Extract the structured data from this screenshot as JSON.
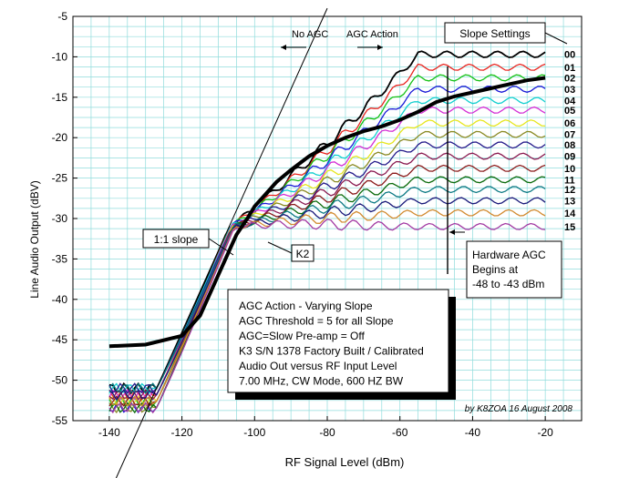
{
  "chart_data": {
    "type": "line",
    "xlabel": "RF Signal Level (dBm)",
    "ylabel": "Line Audio Output (dBV)",
    "xlim": [
      -150,
      -10
    ],
    "ylim": [
      -55,
      -5
    ],
    "x_ticks": [
      -140,
      -120,
      -100,
      -80,
      -60,
      -40,
      -20
    ],
    "x_tick_labels": [
      "-140",
      "-120",
      "-100",
      "-80",
      "-60",
      "-40",
      "-20"
    ],
    "y_ticks": [
      -5,
      -10,
      -15,
      -20,
      -25,
      -30,
      -35,
      -40,
      -45,
      -50,
      -55
    ],
    "y_tick_labels": [
      "-5",
      "-10",
      "-15",
      "-20",
      "-25",
      "-30",
      "-35",
      "-40",
      "-45",
      "-50",
      "-55"
    ],
    "grid": true,
    "legend_title": "Slope Settings",
    "no_agc_label": "No AGC",
    "agc_action_label": "AGC Action",
    "slope_label": "1:1 slope",
    "k2_label": "K2",
    "hardware_agc_lines": [
      "Hardware AGC",
      "Begins at",
      "-48 to -43 dBm"
    ],
    "info_lines": [
      "AGC Action - Varying Slope",
      "AGC Threshold = 5 for all Slope",
      "AGC=Slow Pre-amp = Off",
      "K3 S/N 1378 Factory Built / Calibrated",
      "Audio Out versus RF Input Level",
      "7.00 MHz, CW Mode, 600 HZ BW"
    ],
    "credit": "by K8ZOA 16 August 2008",
    "series": [
      {
        "name": "00",
        "color": "#000000",
        "end": -9.7
      },
      {
        "name": "01",
        "color": "#e8241e",
        "end": -11.3
      },
      {
        "name": "02",
        "color": "#16c216",
        "end": -12.6
      },
      {
        "name": "03",
        "color": "#1a1ad6",
        "end": -14.0
      },
      {
        "name": "04",
        "color": "#10cfcf",
        "end": -15.4
      },
      {
        "name": "05",
        "color": "#d42ed4",
        "end": -16.6
      },
      {
        "name": "06",
        "color": "#e6e61e",
        "end": -18.2
      },
      {
        "name": "07",
        "color": "#8a8a24",
        "end": -19.6
      },
      {
        "name": "08",
        "color": "#241a8a",
        "end": -20.9
      },
      {
        "name": "09",
        "color": "#8a1a50",
        "end": -22.3
      },
      {
        "name": "10",
        "color": "#8a1a1a",
        "end": -23.8
      },
      {
        "name": "11",
        "color": "#0a6a0a",
        "end": -25.2
      },
      {
        "name": "12",
        "color": "#0c7a84",
        "end": -26.4
      },
      {
        "name": "13",
        "color": "#1a1a7a",
        "end": -27.8
      },
      {
        "name": "14",
        "color": "#d28a30",
        "end": -29.3
      },
      {
        "name": "15",
        "color": "#a33aa3",
        "end": -31.0
      }
    ],
    "k2_curve": {
      "x": [
        -140,
        -130,
        -120,
        -115,
        -110,
        -107,
        -105,
        -102,
        -100,
        -97,
        -94,
        -90,
        -85,
        -80,
        -75,
        -70,
        -65,
        -60,
        -55,
        -50,
        -45,
        -40,
        -35,
        -30,
        -25,
        -20
      ],
      "y": [
        -45.8,
        -45.6,
        -44.5,
        -42,
        -37,
        -34,
        -32,
        -30,
        -28.5,
        -27,
        -25.5,
        -24,
        -22.3,
        -21,
        -20,
        -19.2,
        -18.6,
        -17.8,
        -16.8,
        -15.6,
        -14.9,
        -14.4,
        -13.9,
        -13.4,
        -12.9,
        -12.6
      ]
    },
    "slope_line": {
      "x": [
        -140,
        -80
      ],
      "y": [
        -64,
        -4
      ]
    }
  }
}
